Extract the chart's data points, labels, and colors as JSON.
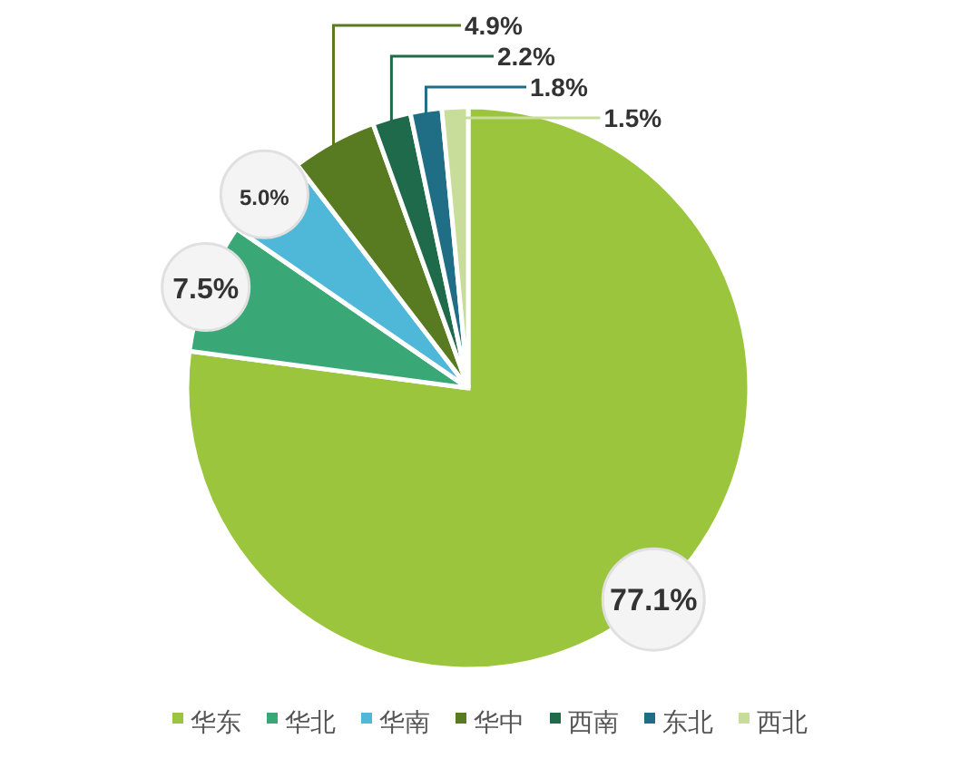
{
  "chart_data": {
    "type": "pie",
    "categories": [
      "华东",
      "华北",
      "华南",
      "华中",
      "西南",
      "东北",
      "西北"
    ],
    "values": [
      77.1,
      7.5,
      5.0,
      4.9,
      2.2,
      1.8,
      1.5
    ],
    "colors": [
      "#9bc53d",
      "#3aa876",
      "#4fb8d8",
      "#587a20",
      "#1f6a4a",
      "#1f6e85",
      "#c8dd99"
    ],
    "value_labels": [
      "77.1%",
      "7.5%",
      "5.0%",
      "4.9%",
      "2.2%",
      "1.8%",
      "1.5%"
    ],
    "legend": "bottom"
  }
}
